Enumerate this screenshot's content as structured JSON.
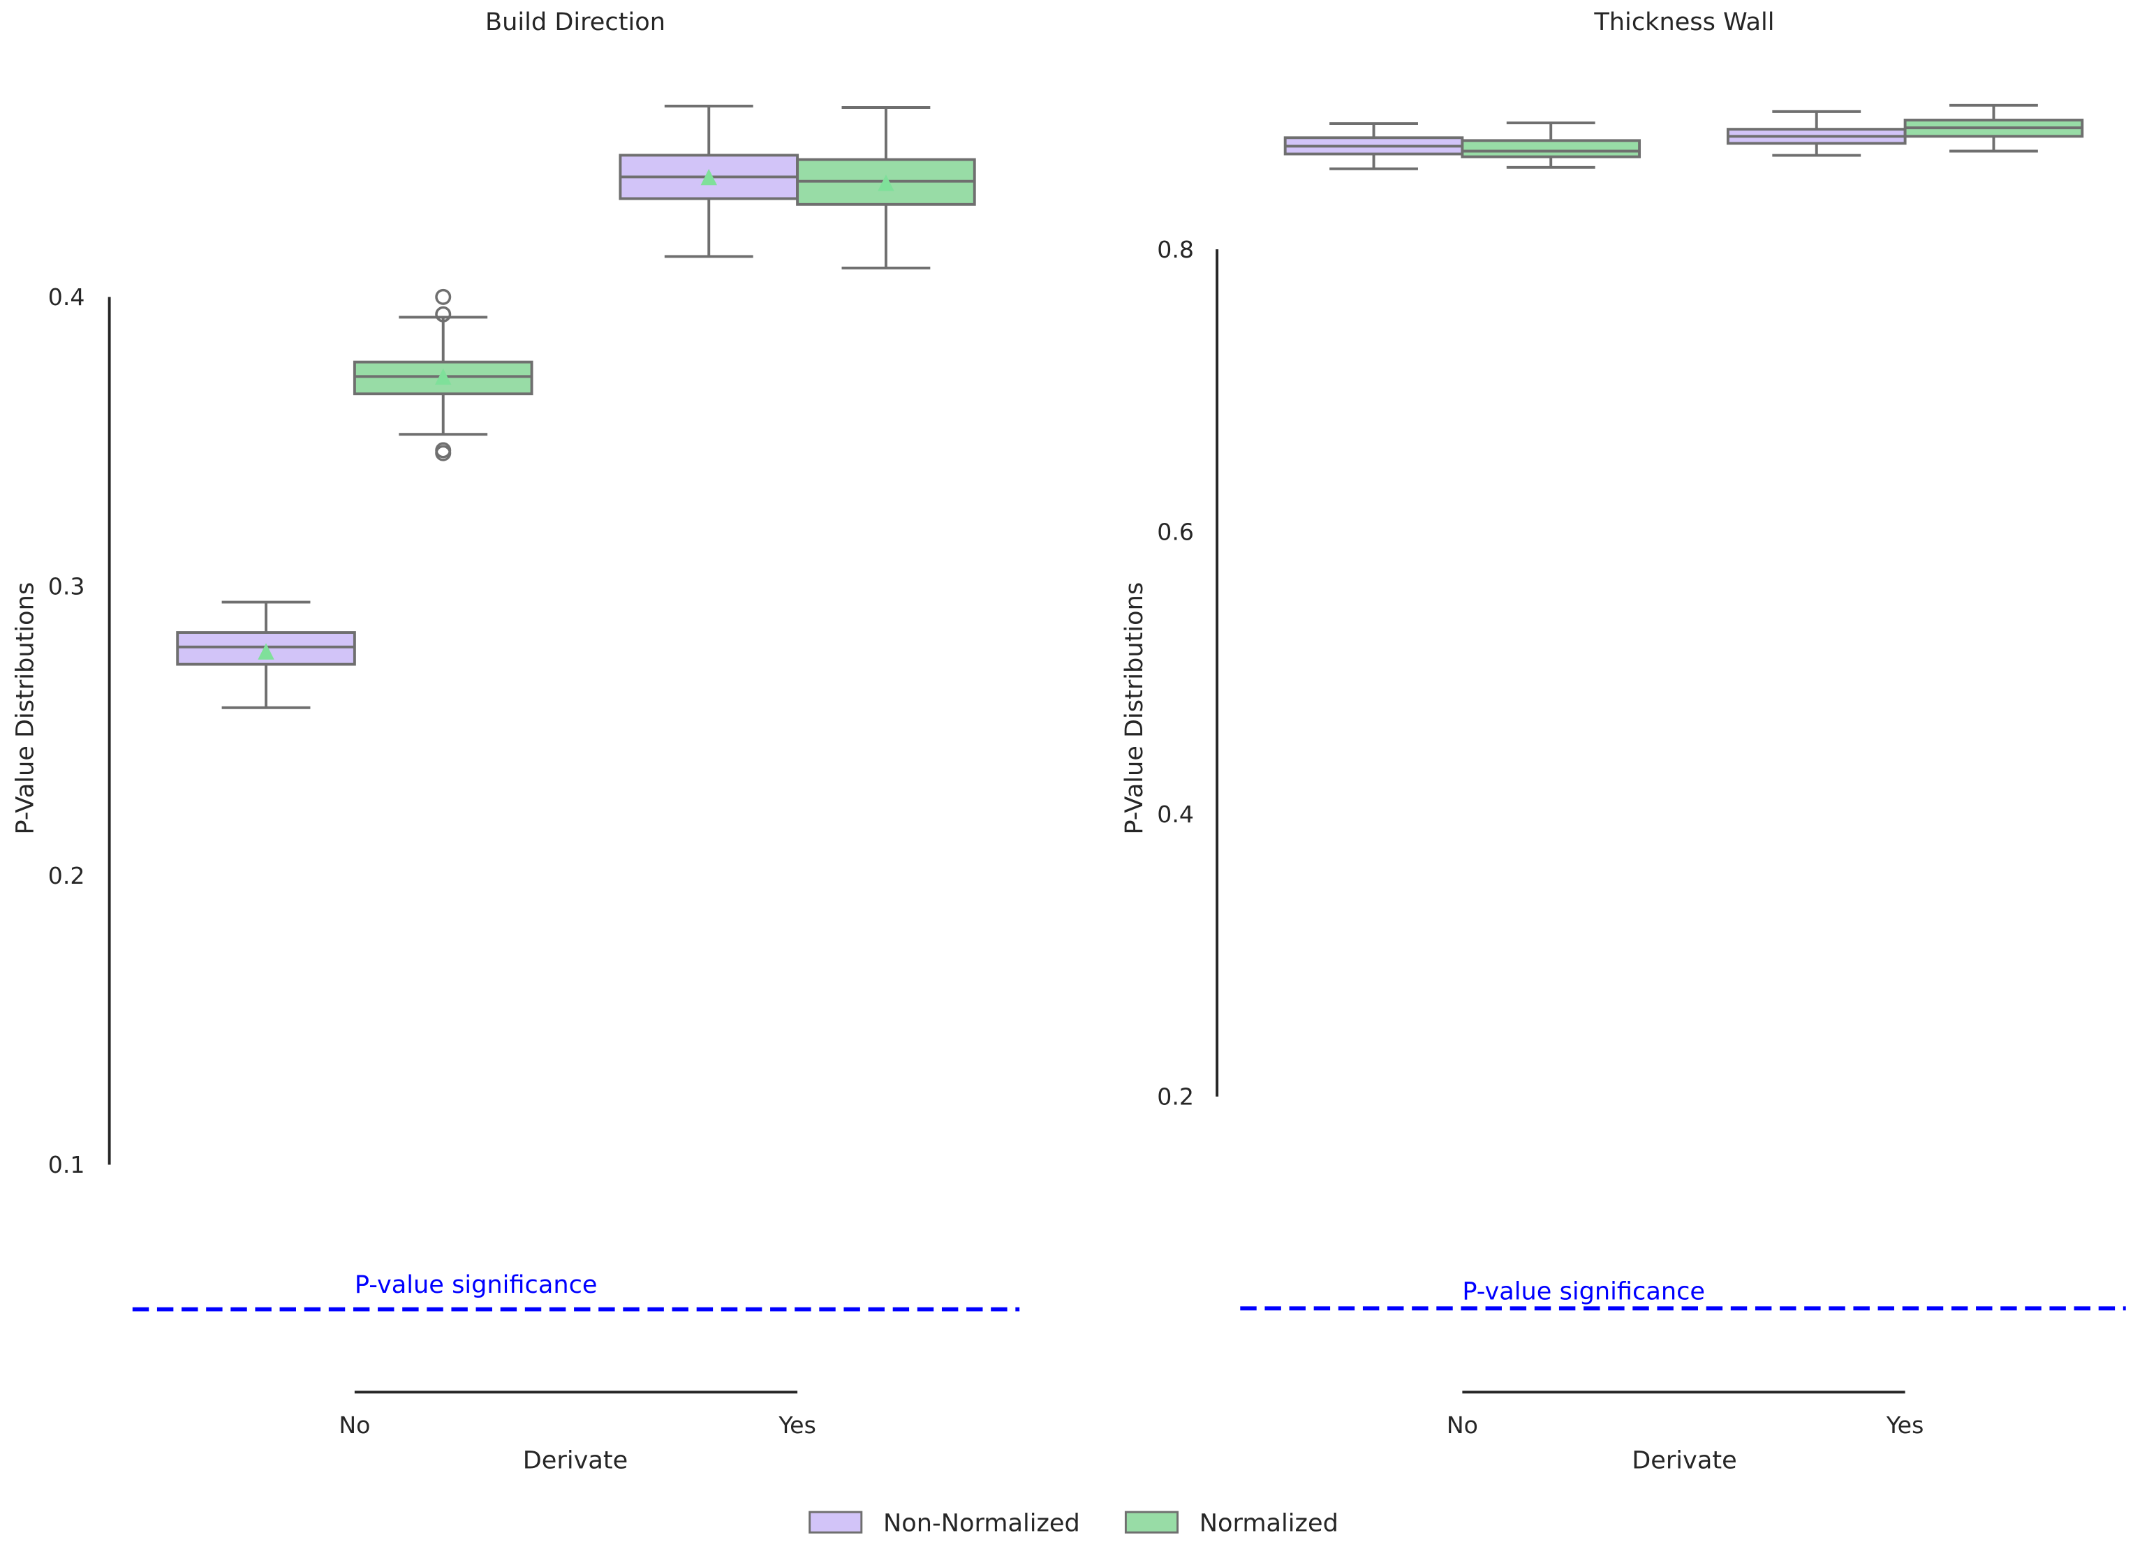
{
  "chart_data": [
    {
      "type": "box",
      "title": "Build Direction",
      "xlabel": "Derivate",
      "ylabel": "P-Value Distributions",
      "categories": [
        "No",
        "Yes"
      ],
      "yticks": [
        0.1,
        0.2,
        0.3,
        0.4
      ],
      "ytick_labels": [
        "0.1",
        "0.2",
        "0.3",
        "0.4"
      ],
      "ylim": [
        0.1,
        0.4
      ],
      "threshold": {
        "value": 0.05,
        "label": "P-value significance",
        "color": "#0000ff"
      },
      "series": [
        {
          "name": "Non-Normalized",
          "boxes": [
            {
              "category": "No",
              "whislo": 0.258,
              "q1": 0.273,
              "med": 0.279,
              "q3": 0.284,
              "whishi": 0.2945,
              "mean": 0.277,
              "fliers": []
            },
            {
              "category": "Yes",
              "whislo": 0.414,
              "q1": 0.434,
              "med": 0.4415,
              "q3": 0.449,
              "whishi": 0.466,
              "mean": 0.441,
              "fliers": []
            }
          ]
        },
        {
          "name": "Normalized",
          "boxes": [
            {
              "category": "No",
              "whislo": 0.3525,
              "q1": 0.3665,
              "med": 0.3725,
              "q3": 0.3775,
              "whishi": 0.393,
              "mean": 0.372,
              "fliers": [
                0.4,
                0.394,
                0.347,
                0.346
              ]
            },
            {
              "category": "Yes",
              "whislo": 0.41,
              "q1": 0.432,
              "med": 0.44,
              "q3": 0.4475,
              "whishi": 0.4655,
              "mean": 0.439,
              "fliers": []
            }
          ]
        }
      ]
    },
    {
      "type": "box",
      "title": "Thickness Wall",
      "xlabel": "Derivate",
      "ylabel": "P-Value Distributions",
      "categories": [
        "No",
        "Yes"
      ],
      "yticks": [
        0.2,
        0.4,
        0.6,
        0.8
      ],
      "ytick_labels": [
        "0.2",
        "0.4",
        "0.6",
        "0.8"
      ],
      "ylim": [
        0.2,
        0.8
      ],
      "threshold": {
        "value": 0.05,
        "label": "P-value significance",
        "color": "#0000ff"
      },
      "series": [
        {
          "name": "Non-Normalized",
          "boxes": [
            {
              "category": "No",
              "whislo": 0.857,
              "q1": 0.8675,
              "med": 0.873,
              "q3": 0.879,
              "whishi": 0.889,
              "fliers": []
            },
            {
              "category": "Yes",
              "whislo": 0.8665,
              "q1": 0.875,
              "med": 0.88,
              "q3": 0.885,
              "whishi": 0.8975,
              "fliers": []
            }
          ]
        },
        {
          "name": "Normalized",
          "boxes": [
            {
              "category": "No",
              "whislo": 0.858,
              "q1": 0.8655,
              "med": 0.8695,
              "q3": 0.877,
              "whishi": 0.8895,
              "fliers": []
            },
            {
              "category": "Yes",
              "whislo": 0.8695,
              "q1": 0.88,
              "med": 0.886,
              "q3": 0.8915,
              "whishi": 0.902,
              "fliers": []
            }
          ]
        }
      ]
    }
  ],
  "legend": {
    "placement": "bottom-center",
    "items": [
      {
        "label": "Non-Normalized",
        "color": "#d2c4f8"
      },
      {
        "label": "Normalized",
        "color": "#98dca6"
      }
    ]
  },
  "colors": {
    "edge": "#6f6f6f",
    "mean_marker": "#7fe09a",
    "axis": "#262626"
  }
}
